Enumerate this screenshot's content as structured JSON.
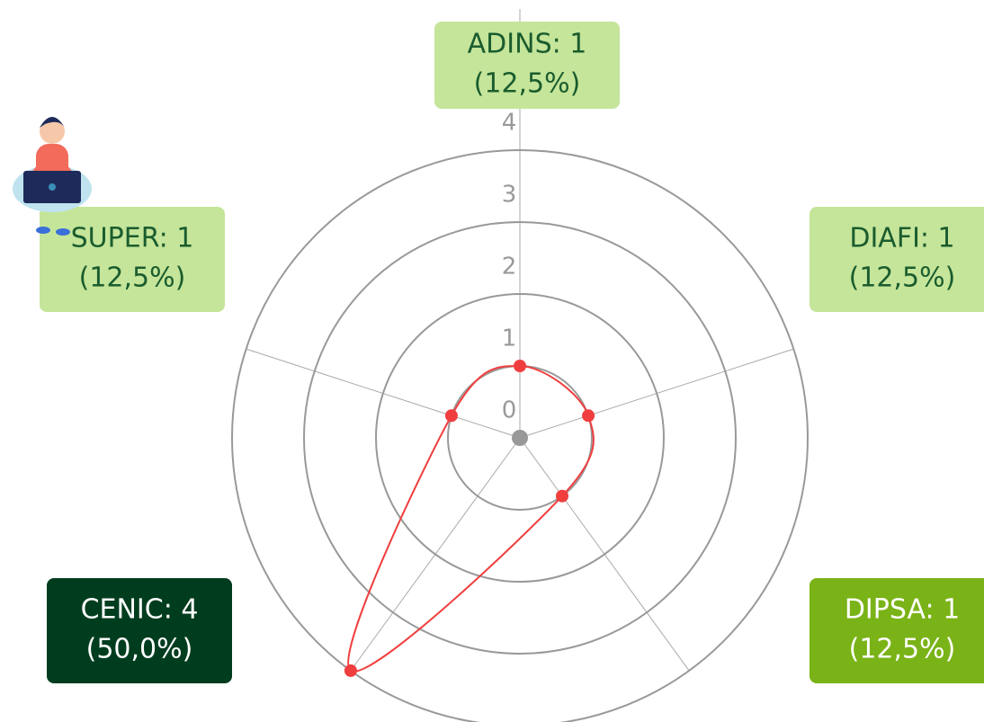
{
  "chart_data": {
    "type": "radar",
    "values": [
      1,
      1,
      1,
      4,
      1
    ],
    "value_labels": [
      "ADINS: 1",
      "DIAFI: 1",
      "DIPSA: 1",
      "CENIC: 4",
      "SUPER: 1"
    ],
    "percent_labels": [
      "(12,5%)",
      "(12,5%)",
      "(12,5%)",
      "(50,0%)",
      "(12,5%)"
    ],
    "label_colors": [
      "#c5e59a",
      "#c5e59a",
      "#7ab317",
      "#003d1f",
      "#c5e59a"
    ],
    "label_text_colors": [
      "#1a5c2e",
      "#1a5c2e",
      "#ffffff",
      "#ffffff",
      "#1a5c2e"
    ],
    "color": "#f03e3e",
    "ylim": [
      0,
      4
    ],
    "yticks": [
      0,
      1,
      2,
      3,
      4
    ],
    "grid": true
  }
}
